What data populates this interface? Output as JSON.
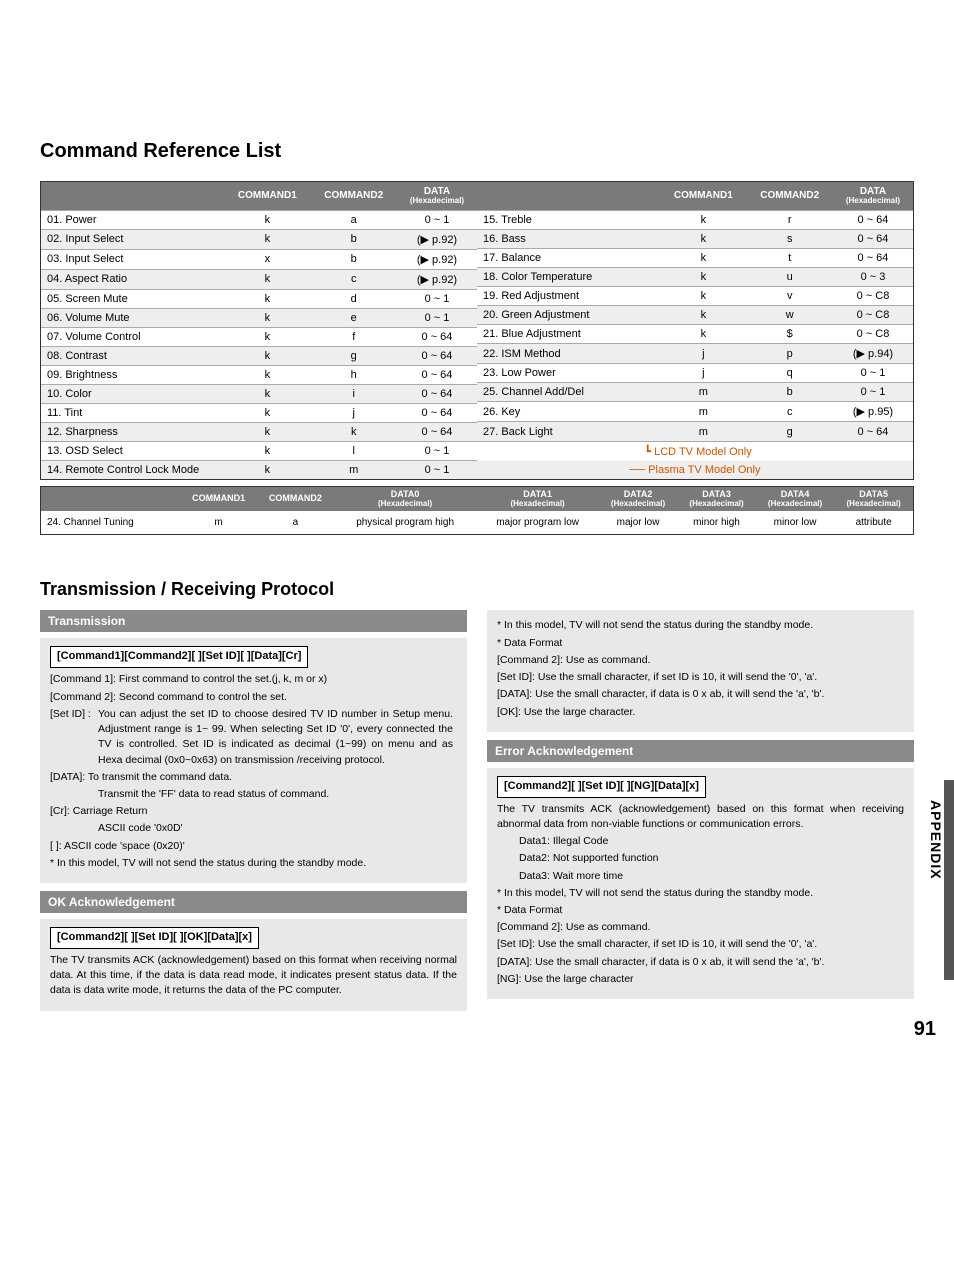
{
  "title1": "Command Reference List",
  "title2": "Transmission / Receiving  Protocol",
  "headers": {
    "c1": "COMMAND1",
    "c2": "COMMAND2",
    "data": "DATA",
    "hex": "(Hexadecimal)"
  },
  "left_rows": [
    {
      "name": "01. Power",
      "c1": "k",
      "c2": "a",
      "d": "0 ~ 1"
    },
    {
      "name": "02. Input Select",
      "c1": "k",
      "c2": "b",
      "d": "(▶ p.92)"
    },
    {
      "name": "03. Input Select",
      "c1": "x",
      "c2": "b",
      "d": "(▶ p.92)"
    },
    {
      "name": "04. Aspect Ratio",
      "c1": "k",
      "c2": "c",
      "d": "(▶ p.92)"
    },
    {
      "name": "05. Screen Mute",
      "c1": "k",
      "c2": "d",
      "d": "0 ~ 1"
    },
    {
      "name": "06. Volume Mute",
      "c1": "k",
      "c2": "e",
      "d": "0 ~ 1"
    },
    {
      "name": "07. Volume Control",
      "c1": "k",
      "c2": "f",
      "d": "0 ~ 64"
    },
    {
      "name": "08. Contrast",
      "c1": "k",
      "c2": "g",
      "d": "0 ~ 64"
    },
    {
      "name": "09. Brightness",
      "c1": "k",
      "c2": "h",
      "d": "0 ~ 64"
    },
    {
      "name": "10. Color",
      "c1": "k",
      "c2": "i",
      "d": "0 ~ 64"
    },
    {
      "name": "11.  Tint",
      "c1": "k",
      "c2": "j",
      "d": "0 ~ 64"
    },
    {
      "name": "12. Sharpness",
      "c1": "k",
      "c2": "k",
      "d": "0 ~ 64"
    },
    {
      "name": "13. OSD Select",
      "c1": "k",
      "c2": "l",
      "d": "0 ~ 1"
    },
    {
      "name": "14. Remote Control Lock Mode",
      "c1": "k",
      "c2": "m",
      "d": "0 ~ 1"
    }
  ],
  "right_rows": [
    {
      "name": "15.  Treble",
      "c1": "k",
      "c2": "r",
      "d": "0 ~ 64"
    },
    {
      "name": "16.  Bass",
      "c1": "k",
      "c2": "s",
      "d": "0 ~ 64"
    },
    {
      "name": "17.  Balance",
      "c1": "k",
      "c2": "t",
      "d": "0 ~ 64"
    },
    {
      "name": "18.  Color Temperature",
      "c1": "k",
      "c2": "u",
      "d": "0 ~ 3"
    },
    {
      "name": "19.  Red Adjustment",
      "c1": "k",
      "c2": "v",
      "d": "0 ~ C8"
    },
    {
      "name": "20.  Green Adjustment",
      "c1": "k",
      "c2": "w",
      "d": "0 ~ C8"
    },
    {
      "name": "21.  Blue Adjustment",
      "c1": "k",
      "c2": "$",
      "d": "0 ~ C8"
    },
    {
      "name": "22. ISM Method",
      "c1": "j",
      "c2": "p",
      "d": "(▶ p.94)"
    },
    {
      "name": "23. Low Power",
      "c1": "j",
      "c2": "q",
      "d": "0 ~ 1"
    },
    {
      "name": "25. Channel Add/Del",
      "c1": "m",
      "c2": "b",
      "d": "0 ~ 1"
    },
    {
      "name": "26. Key",
      "c1": "m",
      "c2": "c",
      "d": "(▶ p.95)"
    },
    {
      "name": "27. Back Light",
      "c1": "m",
      "c2": "g",
      "d": "0 ~ 64"
    }
  ],
  "annot_lcd": "LCD TV Model Only",
  "annot_plasma": "Plasma TV Model Only",
  "lower_headers": [
    "COMMAND1",
    "COMMAND2",
    "DATA0",
    "DATA1",
    "DATA2",
    "DATA3",
    "DATA4",
    "DATA5"
  ],
  "lower_sub": "(Hexadecimal)",
  "lower_row": {
    "name": "24. Channel Tuning",
    "c1": "m",
    "c2": "a",
    "d0": "physical program high",
    "d1": "major program low",
    "d2": "major low",
    "d3": "minor high",
    "d4": "minor low",
    "d5": "attribute"
  },
  "tx": {
    "band": "Transmission",
    "frame": "[Command1][Command2][  ][Set ID][  ][Data][Cr]",
    "l1": "[Command 1]: First command to control the set.(j, k, m or x)",
    "l2": "[Command 2]: Second command to control the set.",
    "l3": "[Set ID] : You can adjust the set ID to choose desired TV ID number in Setup menu. Adjustment range is 1~ 99. When selecting Set ID '0', every connected the TV is controlled. Set ID is indicated as decimal (1~99) on menu and as Hexa decimal (0x0~0x63) on transmission /receiving protocol.",
    "l4": "[DATA]: To transmit the command data.",
    "l4b": "Transmit the 'FF' data to read status of command.",
    "l5": "[Cr]: Carriage Return",
    "l5b": "ASCII code '0x0D'",
    "l6": "[   ]: ASCII code 'space (0x20)'",
    "l7": "* In this model, TV will not send the status during the standby mode."
  },
  "ok": {
    "band": "OK Acknowledgement",
    "frame": "[Command2][  ][Set ID][  ][OK][Data][x]",
    "p": "The TV transmits ACK (acknowledgement) based on this format when receiving normal data. At this time, if the data is data read mode, it indicates present status data. If the data is data write mode, it returns the data of the PC computer."
  },
  "right_top": {
    "l1": "* In this model, TV will not send the status during the standby mode.",
    "l2": "* Data Format",
    "l3": "[Command 2]: Use as command.",
    "l4": "[Set ID]: Use the small character, if set ID is 10, it will send the '0', 'a'.",
    "l5": "[DATA]: Use the small character, if data is 0 x ab, it will send the 'a', 'b'.",
    "l6": "[OK]: Use the large character."
  },
  "err": {
    "band": "Error Acknowledgement",
    "frame": "[Command2][  ][Set ID][  ][NG][Data][x]",
    "p": "The TV transmits ACK (acknowledgement) based on this format when receiving abnormal data from non-viable functions or communication errors.",
    "d1": "Data1: Illegal Code",
    "d2": "Data2: Not supported function",
    "d3": "Data3: Wait more time",
    "l1": "* In this model, TV will not send the status during the standby mode.",
    "l2": "* Data Format",
    "l3": "[Command 2]: Use as command.",
    "l4": "[Set ID]: Use the small character, if set ID is 10, it will send the '0', 'a'.",
    "l5": "[DATA]: Use the small character, if data is 0 x ab, it will send the 'a', 'b'.",
    "l6": "[NG]: Use the large character"
  },
  "appendix": "APPENDIX",
  "pagenum": "91"
}
